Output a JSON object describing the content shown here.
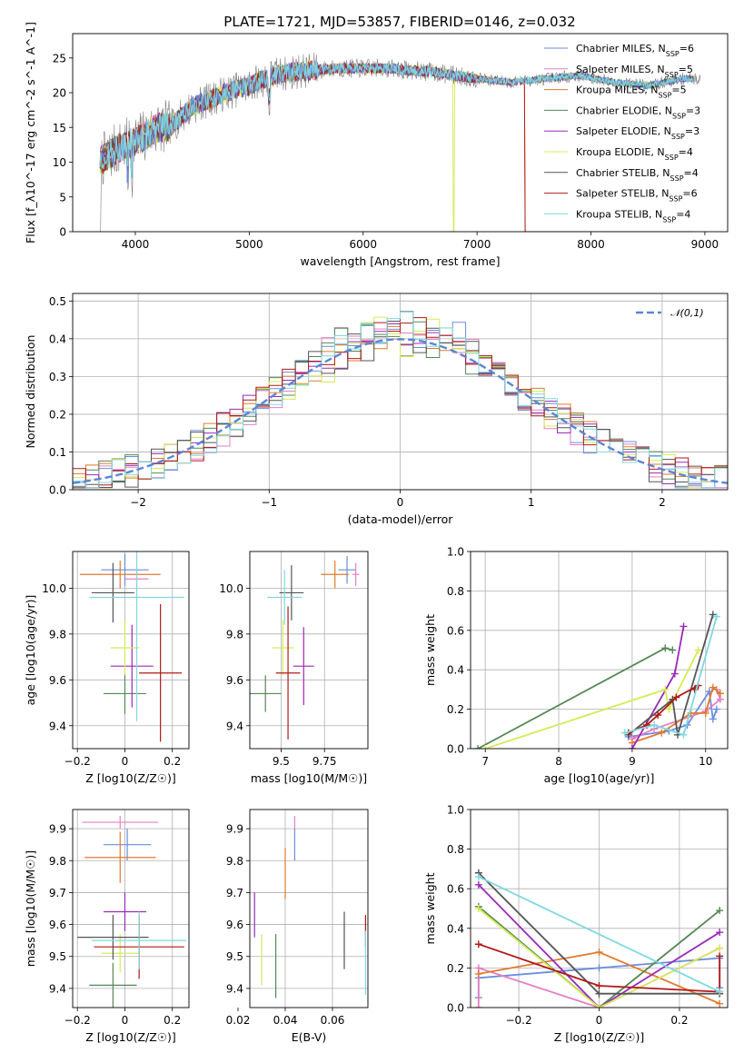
{
  "title": "PLATE=1721, MJD=53857, FIBERID=0146, z=0.032",
  "colors": {
    "Chabrier MILES": "#6a8ddc",
    "Salpeter MILES": "#e47fc3",
    "Kroupa MILES": "#e07a2e",
    "Chabrier ELODIE": "#558855",
    "Salpeter ELODIE": "#9a2ab8",
    "Kroupa ELODIE": "#d6ea58",
    "Chabrier STELIB": "#555555",
    "Salpeter STELIB": "#b01818",
    "Kroupa STELIB": "#7fd8e0"
  },
  "chart_data": [
    {
      "type": "line",
      "name": "spectrum",
      "xlabel": "wavelength [Angstrom, rest frame]",
      "ylabel": "Flux [f_λ10^-17 erg cm^-2 s^-1 A^-1]",
      "xlim": [
        3450,
        9200
      ],
      "ylim": [
        0,
        28.5
      ],
      "xticks": [
        4000,
        5000,
        6000,
        7000,
        8000,
        9000
      ],
      "yticks": [
        0,
        5,
        10,
        15,
        20,
        25
      ],
      "legend_position": "top-right",
      "legend": [
        "Chabrier MILES, N_SSP=6",
        "Salpeter MILES, N_SSP=5",
        "Kroupa MILES, N_SSP=5",
        "Chabrier ELODIE, N_SSP=3",
        "Salpeter ELODIE, N_SSP=3",
        "Kroupa ELODIE, N_SSP=4",
        "Chabrier STELIB, N_SSP=4",
        "Salpeter STELIB, N_SSP=6",
        "Kroupa STELIB, N_SSP=4"
      ],
      "continuum_points": [
        [
          3680,
          10
        ],
        [
          3850,
          12
        ],
        [
          4000,
          13
        ],
        [
          4200,
          15
        ],
        [
          4300,
          15
        ],
        [
          4500,
          18
        ],
        [
          4800,
          20
        ],
        [
          5000,
          21
        ],
        [
          5200,
          22.5
        ],
        [
          5400,
          23
        ],
        [
          5800,
          23.5
        ],
        [
          6200,
          23.5
        ],
        [
          6600,
          23
        ],
        [
          7000,
          22
        ],
        [
          7300,
          21.5
        ],
        [
          7600,
          22
        ],
        [
          7900,
          22.5
        ],
        [
          8200,
          21.5
        ],
        [
          8500,
          21
        ],
        [
          8800,
          22
        ],
        [
          8900,
          22
        ]
      ]
    },
    {
      "type": "histogram",
      "name": "residuals",
      "xlabel": "(data-model)/error",
      "ylabel": "Normed distribution",
      "xlim": [
        -2.5,
        2.5
      ],
      "ylim": [
        0,
        0.52
      ],
      "xticks": [
        -2,
        -1,
        0,
        1,
        2
      ],
      "yticks": [
        0.0,
        0.1,
        0.2,
        0.3,
        0.4,
        0.5
      ],
      "reference": {
        "name": "𝒩(0,1)",
        "mean": 0,
        "sigma": 1
      },
      "legend_position": "top-right"
    },
    {
      "type": "scatter",
      "name": "age-vs-Z",
      "xlabel": "Z [log10(Z/Z☉)]",
      "ylabel": "age  [log10(age/yr)]",
      "xlim": [
        -0.22,
        0.27
      ],
      "ylim": [
        9.3,
        10.16
      ],
      "xticks": [
        -0.2,
        0.0,
        0.2
      ],
      "yticks": [
        9.4,
        9.6,
        9.8,
        10.0
      ],
      "points": [
        {
          "model": "Chabrier MILES",
          "x": 0.0,
          "xerr": 0.1,
          "y": 10.08,
          "yerr": 0.07
        },
        {
          "model": "Salpeter MILES",
          "x": 0.05,
          "xerr": 0.05,
          "y": 10.04,
          "yerr": 0.05
        },
        {
          "model": "Kroupa MILES",
          "x": -0.02,
          "xerr": 0.17,
          "y": 10.06,
          "yerr": 0.06
        },
        {
          "model": "Chabrier ELODIE",
          "x": 0.0,
          "xerr": 0.09,
          "y": 9.54,
          "yerr": 0.09
        },
        {
          "model": "Salpeter ELODIE",
          "x": 0.03,
          "xerr": 0.09,
          "y": 9.66,
          "yerr": 0.18
        },
        {
          "model": "Kroupa ELODIE",
          "x": 0.0,
          "xerr": 0.06,
          "y": 9.74,
          "yerr": 0.12
        },
        {
          "model": "Chabrier STELIB",
          "x": -0.05,
          "xerr": 0.09,
          "y": 9.98,
          "yerr": 0.13
        },
        {
          "model": "Salpeter STELIB",
          "x": 0.15,
          "xerr": 0.09,
          "y": 9.63,
          "yerr": 0.3
        },
        {
          "model": "Kroupa STELIB",
          "x": 0.05,
          "xerr": 0.2,
          "y": 9.96,
          "yerr": 0.54
        }
      ]
    },
    {
      "type": "scatter",
      "name": "age-vs-mass",
      "xlabel": "mass [log10(M/M☉)]",
      "ylabel": "",
      "xlim": [
        9.32,
        10.0
      ],
      "ylim": [
        9.3,
        10.16
      ],
      "xticks": [
        9.5,
        9.75
      ],
      "yticks": [
        9.4,
        9.6,
        9.8,
        10.0
      ],
      "points": [
        {
          "model": "Chabrier MILES",
          "x": 9.88,
          "xerr": 0.05,
          "y": 10.08,
          "yerr": 0.06
        },
        {
          "model": "Salpeter MILES",
          "x": 9.93,
          "xerr": 0.02,
          "y": 10.06,
          "yerr": 0.05
        },
        {
          "model": "Kroupa MILES",
          "x": 9.81,
          "xerr": 0.08,
          "y": 10.06,
          "yerr": 0.06
        },
        {
          "model": "Chabrier ELODIE",
          "x": 9.41,
          "xerr": 0.09,
          "y": 9.54,
          "yerr": 0.08
        },
        {
          "model": "Salpeter ELODIE",
          "x": 9.63,
          "xerr": 0.06,
          "y": 9.66,
          "yerr": 0.17
        },
        {
          "model": "Kroupa ELODIE",
          "x": 9.51,
          "xerr": 0.06,
          "y": 9.74,
          "yerr": 0.12
        },
        {
          "model": "Chabrier STELIB",
          "x": 9.56,
          "xerr": 0.07,
          "y": 9.98,
          "yerr": 0.12
        },
        {
          "model": "Salpeter STELIB",
          "x": 9.54,
          "xerr": 0.07,
          "y": 9.63,
          "yerr": 0.29
        },
        {
          "model": "Kroupa STELIB",
          "x": 9.52,
          "xerr": 0.1,
          "y": 9.96,
          "yerr": 0.12
        }
      ]
    },
    {
      "type": "line",
      "name": "mass-weight-vs-age",
      "xlabel": "age  [log10(age/yr)]",
      "ylabel": "mass weight",
      "xlim": [
        6.8,
        10.3
      ],
      "ylim": [
        0,
        1.0
      ],
      "xticks": [
        7,
        8,
        9,
        10
      ],
      "yticks": [
        0.0,
        0.2,
        0.4,
        0.6,
        0.8,
        1.0
      ],
      "series": [
        {
          "model": "Chabrier MILES",
          "points": [
            [
              8.95,
              0.06
            ],
            [
              9.5,
              0.09
            ],
            [
              9.75,
              0.12
            ],
            [
              10.05,
              0.29
            ],
            [
              10.1,
              0.15
            ],
            [
              10.15,
              0.2
            ]
          ]
        },
        {
          "model": "Salpeter MILES",
          "points": [
            [
              9.0,
              0.05
            ],
            [
              9.3,
              0.1
            ],
            [
              10.0,
              0.19
            ],
            [
              10.2,
              0.25
            ],
            [
              10.15,
              0.3
            ]
          ]
        },
        {
          "model": "Kroupa MILES",
          "points": [
            [
              9.0,
              0.03
            ],
            [
              9.4,
              0.08
            ],
            [
              9.8,
              0.18
            ],
            [
              10.0,
              0.18
            ],
            [
              10.1,
              0.31
            ],
            [
              10.2,
              0.28
            ]
          ]
        },
        {
          "model": "Chabrier ELODIE",
          "points": [
            [
              6.9,
              0.0
            ],
            [
              9.45,
              0.51
            ],
            [
              9.55,
              0.5
            ]
          ]
        },
        {
          "model": "Salpeter ELODIE",
          "points": [
            [
              9.0,
              0.0
            ],
            [
              9.58,
              0.38
            ],
            [
              9.7,
              0.62
            ]
          ]
        },
        {
          "model": "Kroupa ELODIE",
          "points": [
            [
              7.0,
              0.0
            ],
            [
              9.45,
              0.3
            ],
            [
              9.5,
              0.2
            ],
            [
              9.9,
              0.5
            ]
          ]
        },
        {
          "model": "Chabrier STELIB",
          "points": [
            [
              8.95,
              0.07
            ],
            [
              9.55,
              0.25
            ],
            [
              9.62,
              0.07
            ],
            [
              10.1,
              0.68
            ]
          ]
        },
        {
          "model": "Salpeter STELIB",
          "points": [
            [
              8.95,
              0.08
            ],
            [
              9.2,
              0.12
            ],
            [
              9.35,
              0.17
            ],
            [
              9.6,
              0.26
            ],
            [
              9.9,
              0.32
            ],
            [
              9.85,
              0.3
            ]
          ]
        },
        {
          "model": "Kroupa STELIB",
          "points": [
            [
              8.9,
              0.08
            ],
            [
              9.3,
              0.12
            ],
            [
              9.7,
              0.07
            ],
            [
              10.15,
              0.67
            ]
          ]
        }
      ]
    },
    {
      "type": "scatter",
      "name": "mass-vs-Z",
      "xlabel": "Z [log10(Z/Z☉)]",
      "ylabel": "mass [log10(M/M☉)]",
      "xlim": [
        -0.22,
        0.27
      ],
      "ylim": [
        9.34,
        9.96
      ],
      "xticks": [
        -0.2,
        0.0,
        0.2
      ],
      "yticks": [
        9.4,
        9.5,
        9.6,
        9.7,
        9.8,
        9.9
      ],
      "points": [
        {
          "model": "Chabrier MILES",
          "x": 0.01,
          "xerr": 0.1,
          "y": 9.85,
          "yerr": 0.05
        },
        {
          "model": "Salpeter MILES",
          "x": -0.02,
          "xerr": 0.16,
          "y": 9.92,
          "yerr": 0.02
        },
        {
          "model": "Kroupa MILES",
          "x": -0.02,
          "xerr": 0.15,
          "y": 9.81,
          "yerr": 0.08
        },
        {
          "model": "Chabrier ELODIE",
          "x": -0.05,
          "xerr": 0.1,
          "y": 9.41,
          "yerr": 0.07
        },
        {
          "model": "Salpeter ELODIE",
          "x": 0.0,
          "xerr": 0.09,
          "y": 9.64,
          "yerr": 0.06
        },
        {
          "model": "Kroupa ELODIE",
          "x": -0.02,
          "xerr": 0.08,
          "y": 9.51,
          "yerr": 0.06
        },
        {
          "model": "Chabrier STELIB",
          "x": -0.05,
          "xerr": 0.15,
          "y": 9.56,
          "yerr": 0.07
        },
        {
          "model": "Salpeter STELIB",
          "x": 0.06,
          "xerr": 0.19,
          "y": 9.53,
          "yerr": 0.1
        },
        {
          "model": "Kroupa STELIB",
          "x": 0.06,
          "xerr": 0.2,
          "y": 9.55,
          "yerr": 0.09
        }
      ]
    },
    {
      "type": "scatter",
      "name": "mass-vs-EBV",
      "xlabel": "E(B-V)",
      "ylabel": "",
      "xlim": [
        0.025,
        0.075
      ],
      "ylim": [
        9.34,
        9.96
      ],
      "xticks": [
        0.02,
        0.04,
        0.06
      ],
      "yticks": [
        9.4,
        9.5,
        9.6,
        9.7,
        9.8,
        9.9
      ],
      "points": [
        {
          "model": "Chabrier MILES",
          "x": 0.044,
          "y": 9.85,
          "yerr": 0.05
        },
        {
          "model": "Salpeter MILES",
          "x": 0.044,
          "y": 9.92,
          "yerr": 0.02
        },
        {
          "model": "Kroupa MILES",
          "x": 0.04,
          "y": 9.76,
          "yerr": 0.08
        },
        {
          "model": "Chabrier ELODIE",
          "x": 0.036,
          "y": 9.47,
          "yerr": 0.1
        },
        {
          "model": "Salpeter ELODIE",
          "x": 0.027,
          "y": 9.63,
          "yerr": 0.07
        },
        {
          "model": "Kroupa ELODIE",
          "x": 0.03,
          "y": 9.49,
          "yerr": 0.08
        },
        {
          "model": "Chabrier STELIB",
          "x": 0.065,
          "y": 9.55,
          "yerr": 0.09
        },
        {
          "model": "Salpeter STELIB",
          "x": 0.074,
          "y": 9.58,
          "yerr": 0.05
        },
        {
          "model": "Kroupa STELIB",
          "x": 0.074,
          "y": 9.48,
          "yerr": 0.1
        }
      ]
    },
    {
      "type": "line",
      "name": "mass-weight-vs-Z",
      "xlabel": "Z [log10(Z/Z☉)]",
      "ylabel": "mass weight",
      "xlim": [
        -0.32,
        0.32
      ],
      "ylim": [
        0,
        1.0
      ],
      "xticks": [
        -0.2,
        0.0,
        0.2
      ],
      "yticks": [
        0.0,
        0.2,
        0.4,
        0.6,
        0.8,
        1.0
      ],
      "series": [
        {
          "model": "Chabrier MILES",
          "points": [
            [
              -0.3,
              0.05
            ],
            [
              -0.3,
              0.15
            ],
            [
              0.0,
              0.2
            ],
            [
              0.3,
              0.25
            ],
            [
              0.3,
              0.1
            ]
          ]
        },
        {
          "model": "Salpeter MILES",
          "points": [
            [
              -0.3,
              0.0
            ],
            [
              -0.3,
              0.2
            ],
            [
              0.0,
              0.0
            ],
            [
              0.3,
              0.3
            ]
          ]
        },
        {
          "model": "Kroupa MILES",
          "points": [
            [
              -0.3,
              0.17
            ],
            [
              0.0,
              0.28
            ],
            [
              0.3,
              0.02
            ]
          ]
        },
        {
          "model": "Chabrier ELODIE",
          "points": [
            [
              -0.3,
              0.51
            ],
            [
              0.0,
              0.0
            ],
            [
              0.3,
              0.49
            ]
          ]
        },
        {
          "model": "Salpeter ELODIE",
          "points": [
            [
              -0.3,
              0.62
            ],
            [
              0.0,
              0.0
            ],
            [
              0.3,
              0.38
            ]
          ]
        },
        {
          "model": "Kroupa ELODIE",
          "points": [
            [
              -0.3,
              0.5
            ],
            [
              0.0,
              0.0
            ],
            [
              0.3,
              0.3
            ]
          ]
        },
        {
          "model": "Chabrier STELIB",
          "points": [
            [
              -0.3,
              0.68
            ],
            [
              0.0,
              0.07
            ],
            [
              0.3,
              0.07
            ]
          ]
        },
        {
          "model": "Salpeter STELIB",
          "points": [
            [
              -0.3,
              0.32
            ],
            [
              0.0,
              0.11
            ],
            [
              0.3,
              0.08
            ],
            [
              0.3,
              0.26
            ]
          ]
        },
        {
          "model": "Kroupa STELIB",
          "points": [
            [
              -0.3,
              0.66
            ],
            [
              0.3,
              0.08
            ]
          ]
        }
      ]
    }
  ]
}
